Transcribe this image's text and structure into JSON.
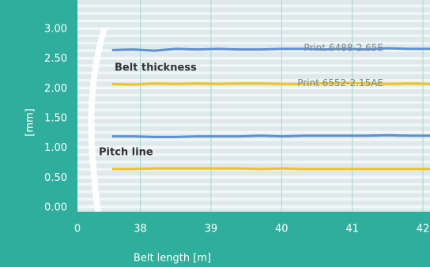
{
  "chart_data": {
    "type": "line",
    "y_label": "[mm]",
    "x_label": "Belt length [m]",
    "annotations": [
      "Belt thickness",
      "Pitch line"
    ],
    "x": [
      37.6,
      37.9,
      38.2,
      38.5,
      38.8,
      39.1,
      39.4,
      39.7,
      40.0,
      40.3,
      40.6,
      40.9,
      41.2,
      41.5,
      41.8,
      42.1
    ],
    "series": [
      {
        "name": "Print 6488-2.65E",
        "color": "#5b8fd6",
        "values": [
          2.65,
          2.66,
          2.64,
          2.67,
          2.66,
          2.67,
          2.66,
          2.66,
          2.67,
          2.67,
          2.66,
          2.67,
          2.66,
          2.68,
          2.67,
          2.67
        ]
      },
      {
        "name": "Print 6552-2.15AE",
        "color": "#f0c419",
        "values": [
          2.08,
          2.07,
          2.09,
          2.08,
          2.09,
          2.08,
          2.09,
          2.09,
          2.08,
          2.08,
          2.09,
          2.1,
          2.09,
          2.08,
          2.09,
          2.08
        ]
      },
      {
        "color": "#5b8fd6",
        "values": [
          1.2,
          1.2,
          1.19,
          1.19,
          1.2,
          1.2,
          1.2,
          1.21,
          1.2,
          1.21,
          1.21,
          1.21,
          1.21,
          1.22,
          1.21,
          1.21
        ]
      },
      {
        "color": "#f0c419",
        "values": [
          0.65,
          0.65,
          0.66,
          0.66,
          0.66,
          0.66,
          0.66,
          0.65,
          0.66,
          0.65,
          0.65,
          0.65,
          0.65,
          0.65,
          0.65,
          0.65
        ]
      }
    ],
    "xlim": [
      0,
      42.1
    ],
    "axis_break": [
      0,
      37.11
    ],
    "xticks": [
      0,
      38,
      39,
      40,
      41,
      42
    ],
    "ylim": [
      0,
      3.5
    ],
    "yticks": [
      {
        "value": 0,
        "label": "0.00"
      },
      {
        "value": 0.5,
        "label": "0.50"
      },
      {
        "value": 1,
        "label": "1.00"
      },
      {
        "value": 1.5,
        "label": "1.50"
      },
      {
        "value": 2,
        "label": "2.00"
      },
      {
        "value": 2.5,
        "label": "2.50"
      },
      {
        "value": 3,
        "label": "3.00"
      }
    ],
    "grid": true
  }
}
